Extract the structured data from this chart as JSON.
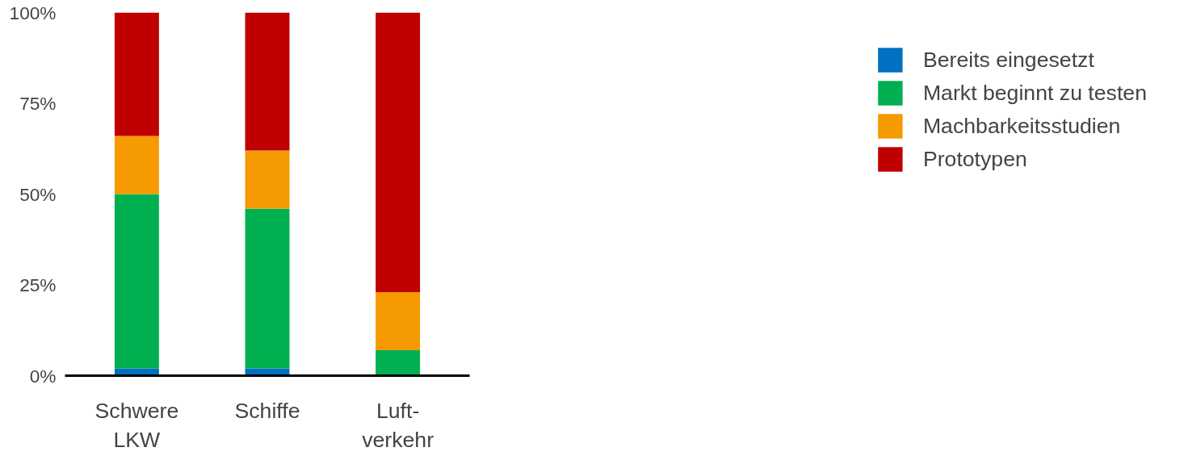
{
  "chart_data": {
    "type": "bar",
    "stacked": true,
    "categories": [
      "Schwere\nLKW",
      "Schiffe",
      "Luft-\nverkehr"
    ],
    "series": [
      {
        "name": "Bereits eingesetzt",
        "color": "#0070c0",
        "values": [
          2,
          2,
          0
        ]
      },
      {
        "name": "Markt beginnt zu testen",
        "color": "#00b050",
        "values": [
          48,
          44,
          7
        ]
      },
      {
        "name": "Machbarkeitsstudien",
        "color": "#f59a00",
        "values": [
          16,
          16,
          16
        ]
      },
      {
        "name": "Prototypen",
        "color": "#c00000",
        "values": [
          34,
          38,
          77
        ]
      }
    ],
    "ylim": [
      0,
      100
    ],
    "yticks": [
      {
        "value": 0,
        "label": "0%"
      },
      {
        "value": 25,
        "label": "25%"
      },
      {
        "value": 50,
        "label": "50%"
      },
      {
        "value": 75,
        "label": "75%"
      },
      {
        "value": 100,
        "label": "100%"
      }
    ],
    "grid": false,
    "legend": "right"
  }
}
